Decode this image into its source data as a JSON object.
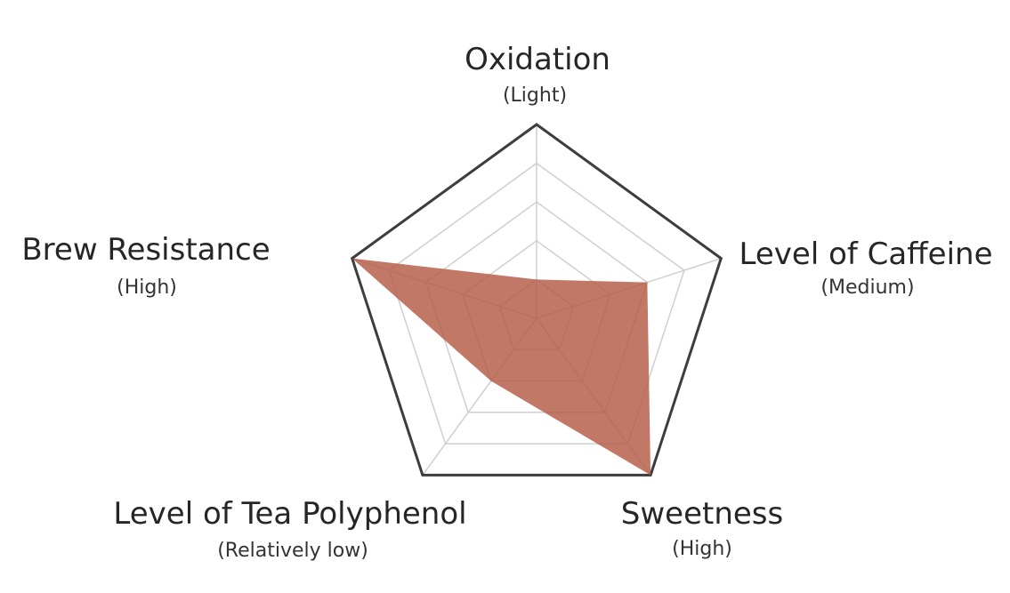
{
  "chart_data": {
    "type": "radar",
    "axes": [
      {
        "label": "Oxidation",
        "level": "(Light)",
        "value": 0.2
      },
      {
        "label": "Level of Caffeine",
        "level": "(Medium)",
        "value": 0.6
      },
      {
        "label": "Sweetness",
        "level": "(High)",
        "value": 1.0
      },
      {
        "label": "Level of Tea Polyphenol",
        "level": "(Relatively low)",
        "value": 0.4
      },
      {
        "label": "Brew Resistance",
        "level": "(High)",
        "value": 1.0
      }
    ],
    "scale_max": 1.0,
    "grid_levels": 5,
    "colors": {
      "fill": "#b55a45",
      "outer_ring": "#3d3d3d",
      "grid": "#cfcfcf"
    }
  }
}
